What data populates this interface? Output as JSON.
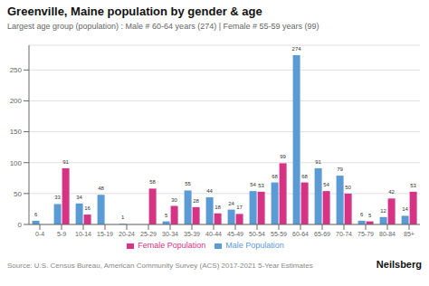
{
  "chart_data": {
    "type": "bar",
    "title": "Greenville, Maine population by gender & age",
    "subtitle": "Largest age group (population) : Male # 60-64 years (274) | Female # 55-59 years (99)",
    "annotations": [
      "Source: U.S. Census Bureau, American Community Survey (ACS) 2017-2021 5-Year Estimates",
      "Neilsberg"
    ],
    "categories": [
      "0-4",
      "5-9",
      "10-14",
      "15-19",
      "20-24",
      "25-29",
      "30-34",
      "35-39",
      "40-44",
      "45-49",
      "50-54",
      "55-59",
      "60-64",
      "65-69",
      "70-74",
      "75-79",
      "80-84",
      "85+"
    ],
    "series": [
      {
        "name": "Male Population",
        "color": "#5b9bd5",
        "values": [
          6,
          33,
          34,
          48,
          1,
          0,
          5,
          55,
          44,
          24,
          54,
          68,
          274,
          91,
          79,
          6,
          12,
          14
        ]
      },
      {
        "name": "Female Population",
        "color": "#d63384",
        "values": [
          0,
          91,
          16,
          0,
          0,
          58,
          30,
          28,
          18,
          17,
          53,
          99,
          68,
          54,
          50,
          5,
          42,
          53
        ]
      }
    ],
    "ylim": [
      0,
      290
    ],
    "yticks": [
      0,
      50,
      100,
      150,
      200,
      250
    ],
    "grid": true,
    "data_labels": true,
    "legend": "bottom"
  }
}
